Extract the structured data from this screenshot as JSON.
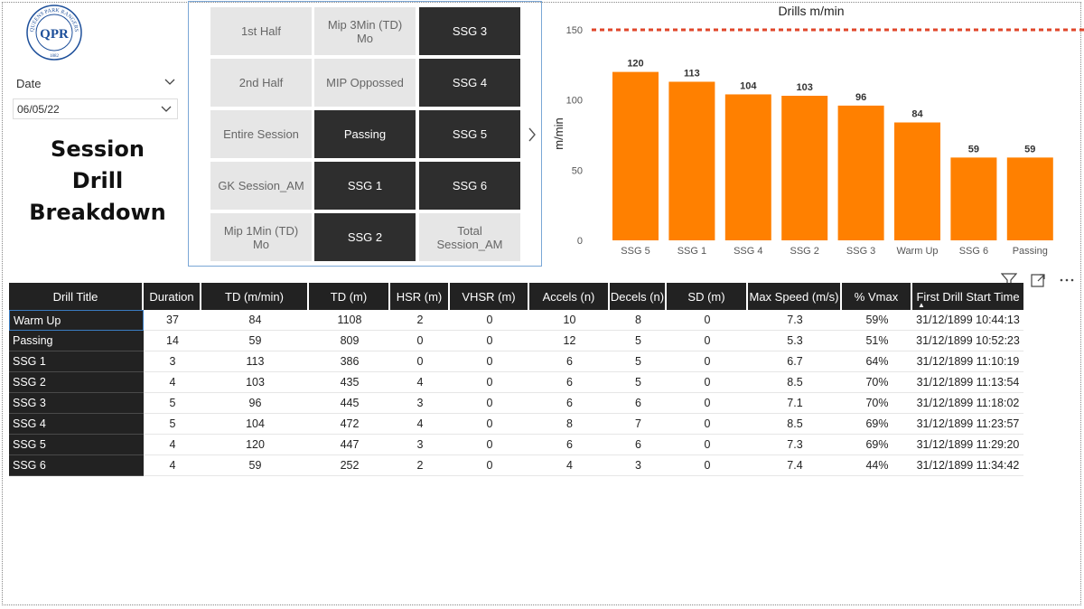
{
  "logo": {
    "arc_text_top": "QUEENS PARK RANGERS",
    "monogram": "QPR",
    "year": "1882"
  },
  "date_slicer": {
    "label": "Date",
    "value": "06/05/22"
  },
  "report_title": [
    "Session",
    "Drill",
    "Breakdown"
  ],
  "drill_slicer": {
    "tiles": [
      {
        "label": "1st Half",
        "selected": false
      },
      {
        "label": "Mip 3Min (TD) Mo",
        "selected": false
      },
      {
        "label": "SSG 3",
        "selected": true
      },
      {
        "label": "2nd Half",
        "selected": false
      },
      {
        "label": "MIP Oppossed",
        "selected": false
      },
      {
        "label": "SSG 4",
        "selected": true
      },
      {
        "label": "Entire Session",
        "selected": false
      },
      {
        "label": "Passing",
        "selected": true
      },
      {
        "label": "SSG 5",
        "selected": true
      },
      {
        "label": "GK Session_AM",
        "selected": false
      },
      {
        "label": "SSG 1",
        "selected": true
      },
      {
        "label": "SSG 6",
        "selected": true
      },
      {
        "label": "Mip 1Min (TD) Mo",
        "selected": false
      },
      {
        "label": "SSG 2",
        "selected": true
      },
      {
        "label": "Total Session_AM",
        "selected": false
      }
    ]
  },
  "chart_data": {
    "type": "bar",
    "title": "Drills m/min",
    "xlabel": "",
    "ylabel": "m/min",
    "categories": [
      "SSG 5",
      "SSG 1",
      "SSG 4",
      "SSG 2",
      "SSG 3",
      "Warm Up",
      "SSG 6",
      "Passing"
    ],
    "values": [
      120,
      113,
      104,
      103,
      96,
      84,
      59,
      59
    ],
    "ylim": [
      0,
      150
    ],
    "yticks": [
      0,
      50,
      100,
      150
    ],
    "reference_line": 150,
    "bar_color": "#ff8000",
    "reference_color": "#e0462a",
    "grid": false,
    "legend": "none"
  },
  "table": {
    "columns": [
      "Drill Title",
      "Duration",
      "TD (m/min)",
      "TD (m)",
      "HSR (m)",
      "VHSR (m)",
      "Accels (n)",
      "Decels (n)",
      "SD (m)",
      "Max Speed (m/s)",
      "% Vmax",
      "First Drill Start Time"
    ],
    "sorted_column": "First Drill Start Time",
    "sort_direction": "ascending",
    "rows": [
      [
        "Warm Up",
        "37",
        "84",
        "1108",
        "2",
        "0",
        "10",
        "8",
        "0",
        "7.3",
        "59%",
        "31/12/1899 10:44:13"
      ],
      [
        "Passing",
        "14",
        "59",
        "809",
        "0",
        "0",
        "12",
        "5",
        "0",
        "5.3",
        "51%",
        "31/12/1899 10:52:23"
      ],
      [
        "SSG 1",
        "3",
        "113",
        "386",
        "0",
        "0",
        "6",
        "5",
        "0",
        "6.7",
        "64%",
        "31/12/1899 11:10:19"
      ],
      [
        "SSG 2",
        "4",
        "103",
        "435",
        "4",
        "0",
        "6",
        "5",
        "0",
        "8.5",
        "70%",
        "31/12/1899 11:13:54"
      ],
      [
        "SSG 3",
        "5",
        "96",
        "445",
        "3",
        "0",
        "6",
        "6",
        "0",
        "7.1",
        "70%",
        "31/12/1899 11:18:02"
      ],
      [
        "SSG 4",
        "5",
        "104",
        "472",
        "4",
        "0",
        "8",
        "7",
        "0",
        "8.5",
        "69%",
        "31/12/1899 11:23:57"
      ],
      [
        "SSG 5",
        "4",
        "120",
        "447",
        "3",
        "0",
        "6",
        "6",
        "0",
        "7.3",
        "69%",
        "31/12/1899 11:29:20"
      ],
      [
        "SSG 6",
        "4",
        "59",
        "252",
        "2",
        "0",
        "4",
        "3",
        "0",
        "7.4",
        "44%",
        "31/12/1899 11:34:42"
      ]
    ]
  },
  "icons": {
    "filter": "filter-icon",
    "focus": "focus-mode-icon",
    "more": "more-options-icon"
  },
  "colors": {
    "dark": "#222222",
    "accent": "#ff8000",
    "selection_border": "#7aa7d6"
  }
}
